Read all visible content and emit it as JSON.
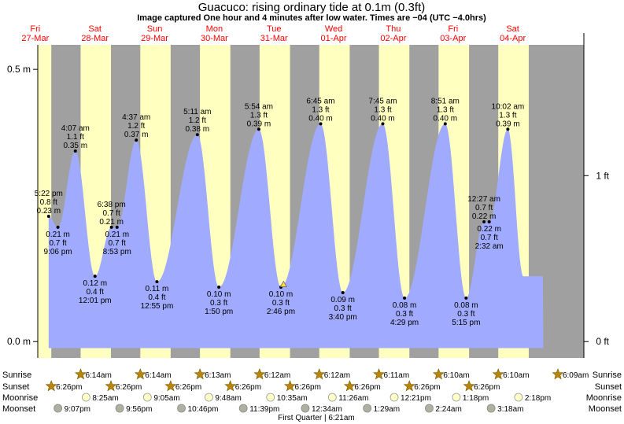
{
  "chart_data": {
    "type": "area",
    "title": "Guacuco: rising  ordinary tide at 0.1m (0.3ft)",
    "subtitle": "Image captured One hour and 4 minutes after low water. Times are −04 (UTC −4.0hrs)",
    "y_left_ticks": [
      {
        "value": 0.0,
        "label": "0.0 m"
      },
      {
        "value": 0.5,
        "label": "0.5 m"
      }
    ],
    "y_right_ticks": [
      {
        "value": 0.0,
        "label": "0 ft"
      },
      {
        "value": 0.3048,
        "label": "1 ft"
      }
    ],
    "ylim_m": [
      -0.03,
      0.545
    ],
    "xlim_hours": [
      -11.0,
      208.6
    ],
    "days": [
      {
        "name": "Fri",
        "date": "27-Mar"
      },
      {
        "name": "Sat",
        "date": "28-Mar"
      },
      {
        "name": "Sun",
        "date": "29-Mar"
      },
      {
        "name": "Mon",
        "date": "30-Mar"
      },
      {
        "name": "Tue",
        "date": "31-Mar"
      },
      {
        "name": "Wed",
        "date": "01-Apr"
      },
      {
        "name": "Thu",
        "date": "02-Apr"
      },
      {
        "name": "Fri",
        "date": "03-Apr"
      },
      {
        "name": "Sat",
        "date": "04-Apr"
      }
    ],
    "series": [
      {
        "name": "tide",
        "color": "#a0aaff"
      }
    ],
    "extremes": [
      {
        "time": "5:22 pm",
        "ft": "0.8 ft",
        "m": "0.23 m",
        "hours": -6.63,
        "value": 0.23,
        "kind": "high",
        "label_pos": "above"
      },
      {
        "time": "9:06 pm",
        "ft": "0.7 ft",
        "m": "0.21 m",
        "hours": -2.9,
        "value": 0.21,
        "kind": "low",
        "label_pos": "below"
      },
      {
        "time": "4:07 am",
        "ft": "1.1 ft",
        "m": "0.35 m",
        "hours": 4.12,
        "value": 0.35,
        "kind": "high",
        "label_pos": "above"
      },
      {
        "time": "12:01 pm",
        "ft": "0.4 ft",
        "m": "0.12 m",
        "hours": 12.02,
        "value": 0.12,
        "kind": "low",
        "label_pos": "below"
      },
      {
        "time": "6:38 pm",
        "ft": "0.7 ft",
        "m": "0.21 m",
        "hours": 18.63,
        "value": 0.21,
        "kind": "high",
        "label_pos": "above"
      },
      {
        "time": "8:53 pm",
        "ft": "0.7 ft",
        "m": "0.21 m",
        "hours": 20.88,
        "value": 0.21,
        "kind": "low",
        "label_pos": "below"
      },
      {
        "time": "4:37 am",
        "ft": "1.2 ft",
        "m": "0.37 m",
        "hours": 28.62,
        "value": 0.37,
        "kind": "high",
        "label_pos": "above"
      },
      {
        "time": "12:55 pm",
        "ft": "0.4 ft",
        "m": "0.11 m",
        "hours": 36.92,
        "value": 0.11,
        "kind": "low",
        "label_pos": "below"
      },
      {
        "time": "5:11 am",
        "ft": "1.2 ft",
        "m": "0.38 m",
        "hours": 53.18,
        "value": 0.38,
        "kind": "high",
        "label_pos": "above"
      },
      {
        "time": "1:50 pm",
        "ft": "0.3 ft",
        "m": "0.10 m",
        "hours": 61.83,
        "value": 0.1,
        "kind": "low",
        "label_pos": "below"
      },
      {
        "time": "5:54 am",
        "ft": "1.3 ft",
        "m": "0.39 m",
        "hours": 77.9,
        "value": 0.39,
        "kind": "high",
        "label_pos": "above"
      },
      {
        "time": "2:46 pm",
        "ft": "0.3 ft",
        "m": "0.10 m",
        "hours": 86.77,
        "value": 0.1,
        "kind": "low",
        "label_pos": "below"
      },
      {
        "time": "6:45 am",
        "ft": "1.3 ft",
        "m": "0.40 m",
        "hours": 102.75,
        "value": 0.4,
        "kind": "high",
        "label_pos": "above"
      },
      {
        "time": "3:40 pm",
        "ft": "0.3 ft",
        "m": "0.09 m",
        "hours": 111.67,
        "value": 0.09,
        "kind": "low",
        "label_pos": "below"
      },
      {
        "time": "7:45 am",
        "ft": "1.3 ft",
        "m": "0.40 m",
        "hours": 127.75,
        "value": 0.4,
        "kind": "high",
        "label_pos": "above"
      },
      {
        "time": "4:29 pm",
        "ft": "0.3 ft",
        "m": "0.08 m",
        "hours": 136.48,
        "value": 0.08,
        "kind": "low",
        "label_pos": "below"
      },
      {
        "time": "8:51 am",
        "ft": "1.3 ft",
        "m": "0.40 m",
        "hours": 152.85,
        "value": 0.4,
        "kind": "high",
        "label_pos": "above"
      },
      {
        "time": "5:15 pm",
        "ft": "0.3 ft",
        "m": "0.08 m",
        "hours": 161.25,
        "value": 0.08,
        "kind": "low",
        "label_pos": "below"
      },
      {
        "time": "10:02 am",
        "ft": "1.3 ft",
        "m": "0.39 m",
        "hours": 178.03,
        "value": 0.39,
        "kind": "high",
        "label_pos": "above"
      },
      {
        "time": "12:27 am",
        "ft": "0.7 ft",
        "m": "0.22 m",
        "hours": 168.45,
        "value": 0.22,
        "kind": "high",
        "label_pos": "above"
      },
      {
        "time": "2:32 am",
        "ft": "0.7 ft",
        "m": "0.22 m",
        "hours": 170.53,
        "value": 0.22,
        "kind": "low",
        "label_pos": "below"
      }
    ],
    "current": {
      "hours": 87.83,
      "value": 0.105
    },
    "sunrise": [
      "6:14am",
      "6:14am",
      "6:13am",
      "6:12am",
      "6:12am",
      "6:11am",
      "6:10am",
      "6:10am",
      "6:09am"
    ],
    "sunset": [
      "6:26pm",
      "6:26pm",
      "6:26pm",
      "6:26pm",
      "6:26pm",
      "6:26pm",
      "6:26pm",
      "6:26pm"
    ],
    "moonrise": [
      "8:25am",
      "9:05am",
      "9:48am",
      "10:35am",
      "11:26am",
      "12:21pm",
      "1:18pm",
      "2:18pm"
    ],
    "moonset": [
      "9:07pm",
      "9:56pm",
      "10:46pm",
      "11:39pm",
      "12:34am",
      "1:29am",
      "2:24am",
      "3:18am"
    ],
    "rows": {
      "sunrise": "Sunrise",
      "sunset": "Sunset",
      "moonrise": "Moonrise",
      "moonset": "Moonset"
    },
    "moon_phase": "First Quarter | 6:21am",
    "colors": {
      "day": "#ffffc0",
      "night": "#a0a0a0",
      "water": "#a0aaff",
      "date": "#ff0000",
      "sun": "#b8860b",
      "moon_light": "#ffffc8",
      "moon_dark": "#b0b0a0"
    }
  }
}
